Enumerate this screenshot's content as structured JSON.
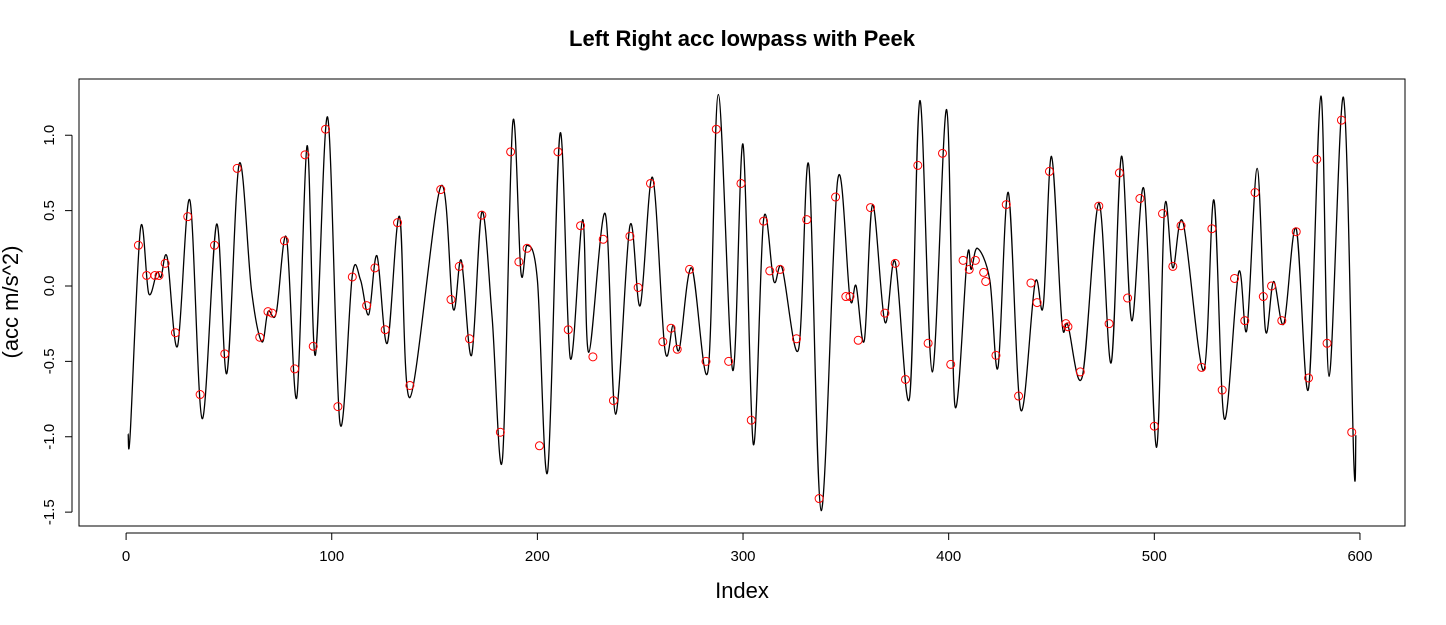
{
  "chart_data": {
    "type": "line",
    "title": "Left Right acc lowpass with Peek",
    "xlabel": "Index",
    "ylabel": "(acc m/s^2)",
    "xlim": [
      -22.9,
      621.9
    ],
    "ylim": [
      -1.592,
      1.373
    ],
    "xticks": [
      0,
      100,
      200,
      300,
      400,
      500,
      600
    ],
    "yticks": [
      -1.5,
      {
        "value": -1.0,
        "label": "-1.0"
      },
      -0.5,
      {
        "value": 0,
        "label": "0.0"
      },
      0.5,
      {
        "value": 1.0,
        "label": "1.0"
      }
    ],
    "series": [
      {
        "type": "line",
        "color": "#000000",
        "x": [
          1,
          2,
          7,
          11,
          15,
          17,
          20,
          25,
          31,
          37,
          44,
          49,
          55,
          61,
          66,
          69,
          73,
          78,
          83,
          88,
          92,
          98,
          104,
          110,
          114,
          118,
          122,
          127,
          133,
          138,
          153,
          159,
          163,
          168,
          173,
          178,
          183,
          188,
          192,
          195,
          200,
          205,
          211,
          216,
          222,
          225,
          233,
          238,
          245,
          250,
          256,
          262,
          266,
          269,
          275,
          283,
          288,
          295,
          300,
          305,
          310,
          315,
          319,
          327,
          332,
          338,
          346,
          352,
          355,
          359,
          363,
          369,
          374,
          381,
          386,
          392,
          399,
          403,
          409,
          411,
          414,
          420,
          424,
          429,
          435,
          442,
          446,
          450,
          455,
          458,
          465,
          473,
          479,
          484,
          489,
          495,
          501,
          505,
          509,
          514,
          524,
          529,
          534,
          541,
          545,
          550,
          554,
          558,
          563,
          569,
          575,
          581,
          585,
          592,
          597,
          598
        ],
        "values": [
          -0.98,
          -0.98,
          0.38,
          -0.05,
          0.09,
          0.06,
          0.19,
          -0.4,
          0.57,
          -0.88,
          0.41,
          -0.58,
          0.81,
          -0.03,
          -0.37,
          -0.17,
          -0.18,
          0.32,
          -0.74,
          0.93,
          -0.46,
          1.12,
          -0.91,
          0.07,
          0.04,
          -0.19,
          0.2,
          -0.38,
          0.46,
          -0.74,
          0.66,
          -0.15,
          0.17,
          -0.46,
          0.49,
          -0.21,
          -1.15,
          1.08,
          0.09,
          0.27,
          0.04,
          -1.23,
          1.01,
          -0.48,
          0.44,
          -0.44,
          0.48,
          -0.85,
          0.4,
          -0.13,
          0.72,
          -0.42,
          -0.26,
          -0.42,
          0.12,
          -0.56,
          1.27,
          -0.56,
          0.94,
          -1.05,
          0.44,
          0.03,
          0.12,
          -0.42,
          0.8,
          -1.49,
          0.7,
          -0.08,
          0.0,
          -0.36,
          0.54,
          -0.24,
          0.16,
          -0.74,
          1.23,
          -0.57,
          1.17,
          -0.79,
          0.19,
          0.11,
          0.25,
          0.04,
          -0.54,
          0.62,
          -0.82,
          0.02,
          -0.13,
          0.86,
          -0.23,
          -0.26,
          -0.6,
          0.55,
          -0.51,
          0.86,
          -0.23,
          0.64,
          -1.07,
          0.52,
          0.12,
          0.42,
          -0.56,
          0.57,
          -0.88,
          0.09,
          -0.29,
          0.78,
          -0.29,
          0.03,
          -0.25,
          0.38,
          -0.68,
          1.26,
          -0.6,
          1.25,
          -1.16,
          -0.99
        ]
      },
      {
        "type": "scatter",
        "color": "#ff0000",
        "x": [
          6,
          10,
          14,
          16,
          19,
          24,
          30,
          36,
          43,
          48,
          54,
          65,
          69,
          71,
          77,
          82,
          87,
          91,
          97,
          103,
          110,
          117,
          121,
          126,
          132,
          138,
          153,
          158,
          162,
          167,
          173,
          182,
          187,
          191,
          195,
          201,
          210,
          215,
          221,
          227,
          232,
          237,
          245,
          249,
          255,
          261,
          265,
          268,
          274,
          282,
          287,
          293,
          299,
          304,
          310,
          313,
          318,
          326,
          331,
          337,
          345,
          350,
          352,
          356,
          362,
          369,
          374,
          379,
          385,
          390,
          397,
          401,
          407,
          410,
          413,
          417,
          418,
          423,
          428,
          434,
          440,
          443,
          449,
          457,
          458,
          464,
          473,
          478,
          483,
          487,
          493,
          500,
          504,
          509,
          513,
          523,
          528,
          533,
          539,
          544,
          549,
          553,
          557,
          562,
          569,
          575,
          579,
          584,
          591,
          596
        ],
        "values": [
          0.27,
          0.07,
          0.07,
          0.07,
          0.15,
          -0.31,
          0.46,
          -0.72,
          0.27,
          -0.45,
          0.78,
          -0.34,
          -0.17,
          -0.18,
          0.3,
          -0.55,
          0.87,
          -0.4,
          1.04,
          -0.8,
          0.06,
          -0.13,
          0.12,
          -0.29,
          0.42,
          -0.66,
          0.64,
          -0.09,
          0.13,
          -0.35,
          0.47,
          -0.97,
          0.89,
          0.16,
          0.25,
          -1.06,
          0.89,
          -0.29,
          0.4,
          -0.47,
          0.31,
          -0.76,
          0.33,
          -0.01,
          0.68,
          -0.37,
          -0.28,
          -0.42,
          0.11,
          -0.5,
          1.04,
          -0.5,
          0.68,
          -0.89,
          0.43,
          0.1,
          0.11,
          -0.35,
          0.44,
          -1.41,
          0.59,
          -0.07,
          -0.07,
          -0.36,
          0.52,
          -0.18,
          0.15,
          -0.62,
          0.8,
          -0.38,
          0.88,
          -0.52,
          0.17,
          0.11,
          0.17,
          0.09,
          0.03,
          -0.46,
          0.54,
          -0.73,
          0.02,
          -0.11,
          0.76,
          -0.25,
          -0.27,
          -0.57,
          0.53,
          -0.25,
          0.75,
          -0.08,
          0.58,
          -0.93,
          0.48,
          0.13,
          0.4,
          -0.54,
          0.38,
          -0.69,
          0.05,
          -0.23,
          0.62,
          -0.07,
          0.0,
          -0.23,
          0.36,
          -0.61,
          0.84,
          -0.38,
          1.1,
          -0.97
        ]
      }
    ]
  }
}
